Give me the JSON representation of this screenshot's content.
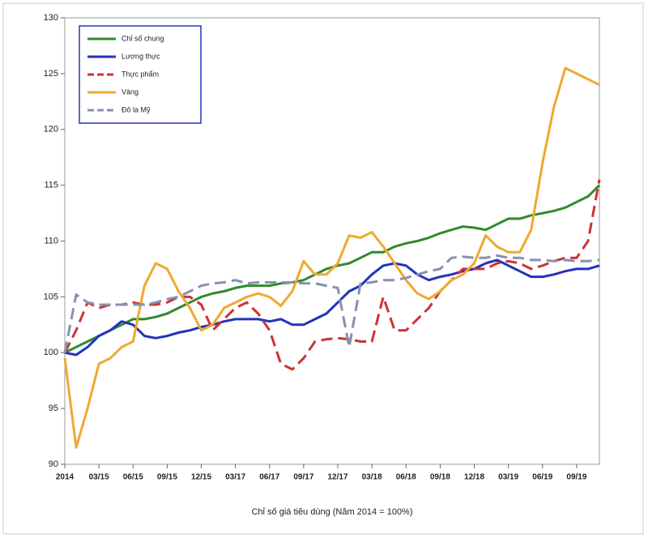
{
  "chart_data": {
    "type": "line",
    "title": "Chỉ số giá tiêu dùng (Năm 2014 = 100%)",
    "x": [
      0,
      1,
      2,
      3,
      4,
      5,
      6,
      7,
      8,
      9,
      10,
      11,
      12,
      13,
      14,
      15,
      16,
      17,
      18,
      19,
      20,
      21,
      22,
      23,
      24,
      25,
      26,
      27,
      28,
      29,
      30,
      31,
      32,
      33,
      34,
      35,
      36,
      37,
      38,
      39,
      40,
      41,
      42,
      43,
      44,
      45,
      46,
      47
    ],
    "xlim": [
      0,
      47
    ],
    "xticks": [
      {
        "value": 0,
        "label": "2014"
      },
      {
        "value": 3,
        "label": "03/15"
      },
      {
        "value": 6,
        "label": "06/15"
      },
      {
        "value": 9,
        "label": "09/15"
      },
      {
        "value": 12,
        "label": "12/15"
      },
      {
        "value": 15,
        "label": "03/17"
      },
      {
        "value": 18,
        "label": "06/17"
      },
      {
        "value": 21,
        "label": "09/17"
      },
      {
        "value": 24,
        "label": "12/17"
      },
      {
        "value": 27,
        "label": "03/18"
      },
      {
        "value": 30,
        "label": "06/18"
      },
      {
        "value": 33,
        "label": "09/18"
      },
      {
        "value": 36,
        "label": "12/18"
      },
      {
        "value": 39,
        "label": "03/19"
      },
      {
        "value": 42,
        "label": "06/19"
      },
      {
        "value": 45,
        "label": "09/19"
      }
    ],
    "ylim": [
      90,
      130
    ],
    "yticks": [
      90,
      95,
      100,
      105,
      110,
      115,
      120,
      125,
      130
    ],
    "legend": "upper-left",
    "series": [
      {
        "name": "Chỉ số chung",
        "color": "#2e8b2e",
        "dash": false,
        "values": [
          100,
          100.5,
          101,
          101.5,
          102,
          102.5,
          103,
          103,
          103.2,
          103.5,
          104,
          104.5,
          105,
          105.3,
          105.5,
          105.8,
          106,
          106,
          106,
          106.2,
          106.3,
          106.5,
          107,
          107.5,
          107.8,
          108,
          108.5,
          109,
          109,
          109.5,
          109.8,
          110,
          110.3,
          110.7,
          111,
          111.3,
          111.2,
          111,
          111.5,
          112,
          112,
          112.3,
          112.5,
          112.7,
          113,
          113.5,
          114,
          115
        ]
      },
      {
        "name": "Lương thực",
        "color": "#2233bb",
        "dash": false,
        "values": [
          100,
          99.8,
          100.5,
          101.5,
          102,
          102.8,
          102.5,
          101.5,
          101.3,
          101.5,
          101.8,
          102,
          102.3,
          102.5,
          102.8,
          103,
          103,
          103,
          102.8,
          103,
          102.5,
          102.5,
          103,
          103.5,
          104.5,
          105.5,
          106,
          107,
          107.8,
          108,
          107.8,
          107,
          106.5,
          106.8,
          107,
          107.3,
          107.5,
          108,
          108.3,
          107.8,
          107.3,
          106.8,
          106.8,
          107,
          107.3,
          107.5,
          107.5,
          107.8
        ]
      },
      {
        "name": "Thực phẩm",
        "color": "#cc3333",
        "dash": true,
        "values": [
          100,
          102,
          104.5,
          104,
          104.3,
          104.3,
          104.5,
          104.3,
          104.3,
          104.5,
          105,
          105,
          104.3,
          102,
          103,
          104,
          104.5,
          103.5,
          102,
          99,
          98.5,
          99.5,
          101,
          101.2,
          101.3,
          101.2,
          101,
          101,
          105,
          102,
          102,
          103,
          104,
          105.5,
          106.5,
          107.5,
          107.5,
          107.5,
          108,
          108.2,
          108,
          107.5,
          107.8,
          108.2,
          108.5,
          108.5,
          110,
          115.5
        ]
      },
      {
        "name": "Vàng",
        "color": "#f0a830",
        "dash": false,
        "values": [
          99.5,
          91.5,
          95,
          99,
          99.5,
          100.5,
          101,
          106,
          108,
          107.5,
          105.5,
          104,
          102,
          102.5,
          104,
          104.5,
          105,
          105.3,
          105,
          104.2,
          105.5,
          108.2,
          107,
          107,
          108,
          110.5,
          110.3,
          110.8,
          109.5,
          108,
          106.5,
          105.3,
          104.8,
          105.5,
          106.5,
          107,
          108,
          110.5,
          109.5,
          109,
          109,
          111,
          117,
          122,
          125.5,
          125,
          124.5,
          124
        ]
      },
      {
        "name": "Đô la Mỹ",
        "color": "#8890b0",
        "dash": true,
        "values": [
          100,
          105.2,
          104.5,
          104.3,
          104.3,
          104.3,
          104.3,
          104.3,
          104.5,
          104.8,
          105,
          105.5,
          106,
          106.2,
          106.3,
          106.5,
          106.2,
          106.3,
          106.3,
          106.3,
          106.3,
          106.2,
          106.2,
          106,
          105.8,
          100.5,
          106.2,
          106.3,
          106.5,
          106.5,
          106.7,
          107,
          107.3,
          107.5,
          108.5,
          108.6,
          108.5,
          108.5,
          108.7,
          108.5,
          108.5,
          108.3,
          108.3,
          108.2,
          108.3,
          108.2,
          108.2,
          108.3
        ]
      }
    ]
  }
}
